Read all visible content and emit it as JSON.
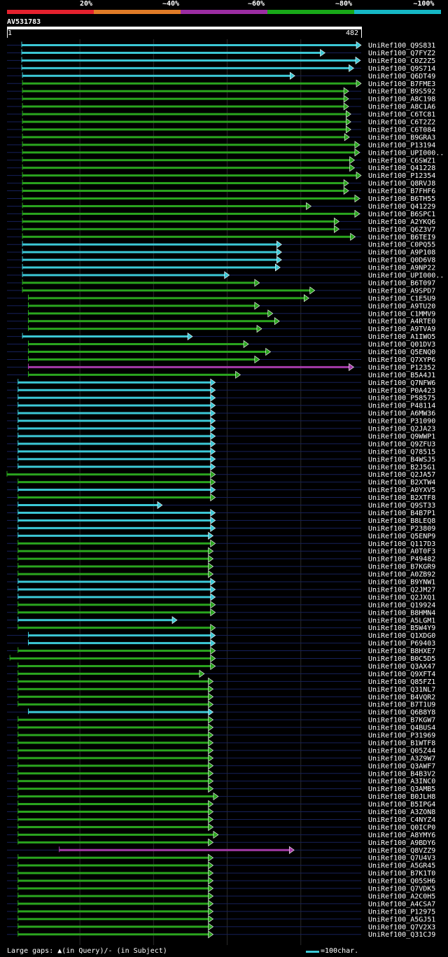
{
  "legend": {
    "labels": [
      "20%",
      "~40%",
      "~60%",
      "~80%",
      "~100%"
    ],
    "colors": [
      "#e4212e",
      "#e07b27",
      "#9b2da2",
      "#18a818",
      "#16b8c6"
    ]
  },
  "query": {
    "name": "AV531783",
    "start": "1",
    "end": "482",
    "length": 482
  },
  "colors": {
    "cyan": "#3cc8d6",
    "green": "#2aa51e",
    "purple": "#a43aa8",
    "grid": "#2a2a2a",
    "dash": "#16205a"
  },
  "chart_data": {
    "type": "alignment",
    "hits": [
      {
        "label": "UniRef100_Q9S831",
        "s": 21,
        "e": 482,
        "c": "cyan"
      },
      {
        "label": "UniRef100_Q7FYZ2",
        "s": 21,
        "e": 433,
        "c": "cyan"
      },
      {
        "label": "UniRef100_C0Z2Z5",
        "s": 21,
        "e": 481,
        "c": "cyan"
      },
      {
        "label": "UniRef100_Q9S714",
        "s": 21,
        "e": 472,
        "c": "cyan"
      },
      {
        "label": "UniRef100_Q6DT49",
        "s": 22,
        "e": 392,
        "c": "cyan"
      },
      {
        "label": "UniRef100_B7FME3",
        "s": 22,
        "e": 482,
        "c": "green"
      },
      {
        "label": "UniRef100_B9S592",
        "s": 22,
        "e": 465,
        "c": "green"
      },
      {
        "label": "UniRef100_A8C198",
        "s": 22,
        "e": 465,
        "c": "green"
      },
      {
        "label": "UniRef100_A8C1A6",
        "s": 22,
        "e": 465,
        "c": "green"
      },
      {
        "label": "UniRef100_C6TC81",
        "s": 22,
        "e": 468,
        "c": "green"
      },
      {
        "label": "UniRef100_C6T2Z2",
        "s": 22,
        "e": 468,
        "c": "green"
      },
      {
        "label": "UniRef100_C6T084",
        "s": 22,
        "e": 468,
        "c": "green"
      },
      {
        "label": "UniRef100_B9GRA3",
        "s": 22,
        "e": 466,
        "c": "green"
      },
      {
        "label": "UniRef100_P13194",
        "s": 22,
        "e": 480,
        "c": "green"
      },
      {
        "label": "UniRef100_UPI000..",
        "s": 22,
        "e": 480,
        "c": "green"
      },
      {
        "label": "UniRef100_C6SWZ1",
        "s": 22,
        "e": 473,
        "c": "green"
      },
      {
        "label": "UniRef100_Q41228",
        "s": 22,
        "e": 473,
        "c": "green"
      },
      {
        "label": "UniRef100_P12354",
        "s": 22,
        "e": 482,
        "c": "green"
      },
      {
        "label": "UniRef100_Q8RVJ8",
        "s": 22,
        "e": 465,
        "c": "green"
      },
      {
        "label": "UniRef100_B7FHF6",
        "s": 22,
        "e": 465,
        "c": "green"
      },
      {
        "label": "UniRef100_B6TH55",
        "s": 22,
        "e": 480,
        "c": "green"
      },
      {
        "label": "UniRef100_Q41229",
        "s": 22,
        "e": 414,
        "c": "green"
      },
      {
        "label": "UniRef100_B6SPC1",
        "s": 22,
        "e": 480,
        "c": "green"
      },
      {
        "label": "UniRef100_A2YKQ6",
        "s": 22,
        "e": 452,
        "c": "green"
      },
      {
        "label": "UniRef100_Q6Z3V7",
        "s": 22,
        "e": 452,
        "c": "green"
      },
      {
        "label": "UniRef100_B6TEI9",
        "s": 22,
        "e": 474,
        "c": "green"
      },
      {
        "label": "UniRef100_C0PQ55",
        "s": 22,
        "e": 374,
        "c": "cyan"
      },
      {
        "label": "UniRef100_A9P108",
        "s": 22,
        "e": 374,
        "c": "cyan"
      },
      {
        "label": "UniRef100_Q0D6V8",
        "s": 22,
        "e": 374,
        "c": "cyan"
      },
      {
        "label": "UniRef100_A9NP22",
        "s": 22,
        "e": 372,
        "c": "cyan"
      },
      {
        "label": "UniRef100_UPI000..",
        "s": 22,
        "e": 303,
        "c": "cyan"
      },
      {
        "label": "UniRef100_B6T097",
        "s": 22,
        "e": 344,
        "c": "green"
      },
      {
        "label": "UniRef100_A9SPD7",
        "s": 22,
        "e": 419,
        "c": "green"
      },
      {
        "label": "UniRef100_C1E5U9",
        "s": 30,
        "e": 411,
        "c": "green"
      },
      {
        "label": "UniRef100_A9TU20",
        "s": 30,
        "e": 344,
        "c": "green"
      },
      {
        "label": "UniRef100_C1MMV9",
        "s": 30,
        "e": 362,
        "c": "green"
      },
      {
        "label": "UniRef100_A4RTE0",
        "s": 30,
        "e": 371,
        "c": "green"
      },
      {
        "label": "UniRef100_A9TVA9",
        "s": 30,
        "e": 347,
        "c": "green"
      },
      {
        "label": "UniRef100_A1IWO5",
        "s": 22,
        "e": 253,
        "c": "cyan"
      },
      {
        "label": "UniRef100_Q01DV3",
        "s": 30,
        "e": 329,
        "c": "green"
      },
      {
        "label": "UniRef100_Q5ENQ0",
        "s": 30,
        "e": 359,
        "c": "green"
      },
      {
        "label": "UniRef100_Q7XYP6",
        "s": 30,
        "e": 344,
        "c": "green"
      },
      {
        "label": "UniRef100_P12352",
        "s": 30,
        "e": 472,
        "c": "purple"
      },
      {
        "label": "UniRef100_B5A4J1",
        "s": 30,
        "e": 318,
        "c": "green"
      },
      {
        "label": "UniRef100_Q7NFW6",
        "s": 16,
        "e": 284,
        "c": "cyan"
      },
      {
        "label": "UniRef100_P0A423",
        "s": 16,
        "e": 284,
        "c": "cyan"
      },
      {
        "label": "UniRef100_P58575",
        "s": 16,
        "e": 284,
        "c": "cyan"
      },
      {
        "label": "UniRef100_P48114",
        "s": 16,
        "e": 284,
        "c": "cyan"
      },
      {
        "label": "UniRef100_A6MW36",
        "s": 16,
        "e": 284,
        "c": "cyan"
      },
      {
        "label": "UniRef100_P31090",
        "s": 16,
        "e": 284,
        "c": "cyan"
      },
      {
        "label": "UniRef100_Q2JA23",
        "s": 16,
        "e": 284,
        "c": "cyan"
      },
      {
        "label": "UniRef100_Q9WWP1",
        "s": 16,
        "e": 284,
        "c": "cyan"
      },
      {
        "label": "UniRef100_Q9ZFU3",
        "s": 16,
        "e": 284,
        "c": "cyan"
      },
      {
        "label": "UniRef100_Q78515",
        "s": 16,
        "e": 284,
        "c": "cyan"
      },
      {
        "label": "UniRef100_B4WSJ5",
        "s": 16,
        "e": 284,
        "c": "cyan"
      },
      {
        "label": "UniRef100_B2J5G1",
        "s": 16,
        "e": 284,
        "c": "cyan"
      },
      {
        "label": "UniRef100_Q2JA57",
        "s": 1,
        "e": 284,
        "c": "green"
      },
      {
        "label": "UniRef100_B2XTW4",
        "s": 16,
        "e": 284,
        "c": "green"
      },
      {
        "label": "UniRef100_A0YXV5",
        "s": 16,
        "e": 284,
        "c": "cyan"
      },
      {
        "label": "UniRef100_B2XTF8",
        "s": 16,
        "e": 284,
        "c": "green"
      },
      {
        "label": "UniRef100_Q9ST33",
        "s": 16,
        "e": 212,
        "c": "cyan"
      },
      {
        "label": "UniRef100_B4B7P1",
        "s": 16,
        "e": 284,
        "c": "cyan"
      },
      {
        "label": "UniRef100_B8LEQ8",
        "s": 16,
        "e": 284,
        "c": "cyan"
      },
      {
        "label": "UniRef100_P23809",
        "s": 16,
        "e": 284,
        "c": "cyan"
      },
      {
        "label": "UniRef100_Q5ENP9",
        "s": 16,
        "e": 281,
        "c": "cyan"
      },
      {
        "label": "UniRef100_Q117D3",
        "s": 16,
        "e": 284,
        "c": "green"
      },
      {
        "label": "UniRef100_A0T0F3",
        "s": 16,
        "e": 281,
        "c": "green"
      },
      {
        "label": "UniRef100_P49482",
        "s": 16,
        "e": 281,
        "c": "green"
      },
      {
        "label": "UniRef100_B7KGR9",
        "s": 16,
        "e": 281,
        "c": "green"
      },
      {
        "label": "UniRef100_A0ZB92",
        "s": 16,
        "e": 281,
        "c": "green"
      },
      {
        "label": "UniRef100_B9YNW1",
        "s": 16,
        "e": 284,
        "c": "cyan"
      },
      {
        "label": "UniRef100_Q2JM27",
        "s": 16,
        "e": 284,
        "c": "cyan"
      },
      {
        "label": "UniRef100_Q2JXQ1",
        "s": 16,
        "e": 284,
        "c": "cyan"
      },
      {
        "label": "UniRef100_Q19924",
        "s": 16,
        "e": 284,
        "c": "green"
      },
      {
        "label": "UniRef100_B8HMN4",
        "s": 16,
        "e": 284,
        "c": "green"
      },
      {
        "label": "UniRef100_A5LGM1",
        "s": 16,
        "e": 232,
        "c": "cyan"
      },
      {
        "label": "UniRef100_B5W4Y9",
        "s": 16,
        "e": 284,
        "c": "green"
      },
      {
        "label": "UniRef100_Q1XDG0",
        "s": 30,
        "e": 284,
        "c": "cyan"
      },
      {
        "label": "UniRef100_P69403",
        "s": 30,
        "e": 284,
        "c": "cyan"
      },
      {
        "label": "UniRef100_B8HXE7",
        "s": 16,
        "e": 284,
        "c": "green"
      },
      {
        "label": "UniRef100_B0C5D5",
        "s": 5,
        "e": 284,
        "c": "green"
      },
      {
        "label": "UniRef100_Q3AX47",
        "s": 16,
        "e": 284,
        "c": "green"
      },
      {
        "label": "UniRef100_Q9XFT4",
        "s": 16,
        "e": 269,
        "c": "green"
      },
      {
        "label": "UniRef100_Q85FZ1",
        "s": 16,
        "e": 281,
        "c": "green"
      },
      {
        "label": "UniRef100_Q31NL7",
        "s": 16,
        "e": 281,
        "c": "green"
      },
      {
        "label": "UniRef100_B4VQR2",
        "s": 16,
        "e": 281,
        "c": "green"
      },
      {
        "label": "UniRef100_B7T1U9",
        "s": 16,
        "e": 281,
        "c": "green"
      },
      {
        "label": "UniRef100_Q6B8Y8",
        "s": 30,
        "e": 281,
        "c": "cyan"
      },
      {
        "label": "UniRef100_B7KGW7",
        "s": 16,
        "e": 281,
        "c": "green"
      },
      {
        "label": "UniRef100_Q4BUS4",
        "s": 16,
        "e": 281,
        "c": "green"
      },
      {
        "label": "UniRef100_P31969",
        "s": 16,
        "e": 281,
        "c": "green"
      },
      {
        "label": "UniRef100_B1WTF8",
        "s": 16,
        "e": 281,
        "c": "green"
      },
      {
        "label": "UniRef100_Q05Z44",
        "s": 16,
        "e": 281,
        "c": "green"
      },
      {
        "label": "UniRef100_A3Z9W7",
        "s": 16,
        "e": 281,
        "c": "green"
      },
      {
        "label": "UniRef100_Q3AWF7",
        "s": 16,
        "e": 281,
        "c": "green"
      },
      {
        "label": "UniRef100_B4B3V2",
        "s": 16,
        "e": 281,
        "c": "green"
      },
      {
        "label": "UniRef100_A3INC0",
        "s": 16,
        "e": 281,
        "c": "green"
      },
      {
        "label": "UniRef100_Q3AMB5",
        "s": 16,
        "e": 281,
        "c": "green"
      },
      {
        "label": "UniRef100_B0JLH8",
        "s": 16,
        "e": 288,
        "c": "green"
      },
      {
        "label": "UniRef100_B5IPG4",
        "s": 16,
        "e": 281,
        "c": "green"
      },
      {
        "label": "UniRef100_A3ZON8",
        "s": 16,
        "e": 281,
        "c": "green"
      },
      {
        "label": "UniRef100_C4NYZ4",
        "s": 16,
        "e": 281,
        "c": "green"
      },
      {
        "label": "UniRef100_Q0ICP0",
        "s": 16,
        "e": 281,
        "c": "green"
      },
      {
        "label": "UniRef100_A8YMY6",
        "s": 16,
        "e": 288,
        "c": "green"
      },
      {
        "label": "UniRef100_A9BDY6",
        "s": 16,
        "e": 281,
        "c": "green"
      },
      {
        "label": "UniRef100_Q8VZZ9",
        "s": 72,
        "e": 391,
        "c": "purple"
      },
      {
        "label": "UniRef100_Q7U4V3",
        "s": 16,
        "e": 281,
        "c": "green"
      },
      {
        "label": "UniRef100_A5GR45",
        "s": 16,
        "e": 281,
        "c": "green"
      },
      {
        "label": "UniRef100_B7K1T0",
        "s": 16,
        "e": 281,
        "c": "green"
      },
      {
        "label": "UniRef100_Q05SH6",
        "s": 16,
        "e": 281,
        "c": "green"
      },
      {
        "label": "UniRef100_Q7VDK5",
        "s": 16,
        "e": 281,
        "c": "green"
      },
      {
        "label": "UniRef100_A2C0H5",
        "s": 16,
        "e": 281,
        "c": "green"
      },
      {
        "label": "UniRef100_A4CSA7",
        "s": 16,
        "e": 281,
        "c": "green"
      },
      {
        "label": "UniRef100_P12975",
        "s": 16,
        "e": 281,
        "c": "green"
      },
      {
        "label": "UniRef100_A5GJ51",
        "s": 16,
        "e": 281,
        "c": "green"
      },
      {
        "label": "UniRef100_Q7V2X3",
        "s": 16,
        "e": 281,
        "c": "green"
      },
      {
        "label": "UniRef100_Q31CJ9",
        "s": 16,
        "e": 281,
        "c": "green"
      }
    ]
  },
  "footer": {
    "gaps_text": "Large gaps: ▲(in Query)/- (in Subject)",
    "scale_text": "=100char."
  }
}
